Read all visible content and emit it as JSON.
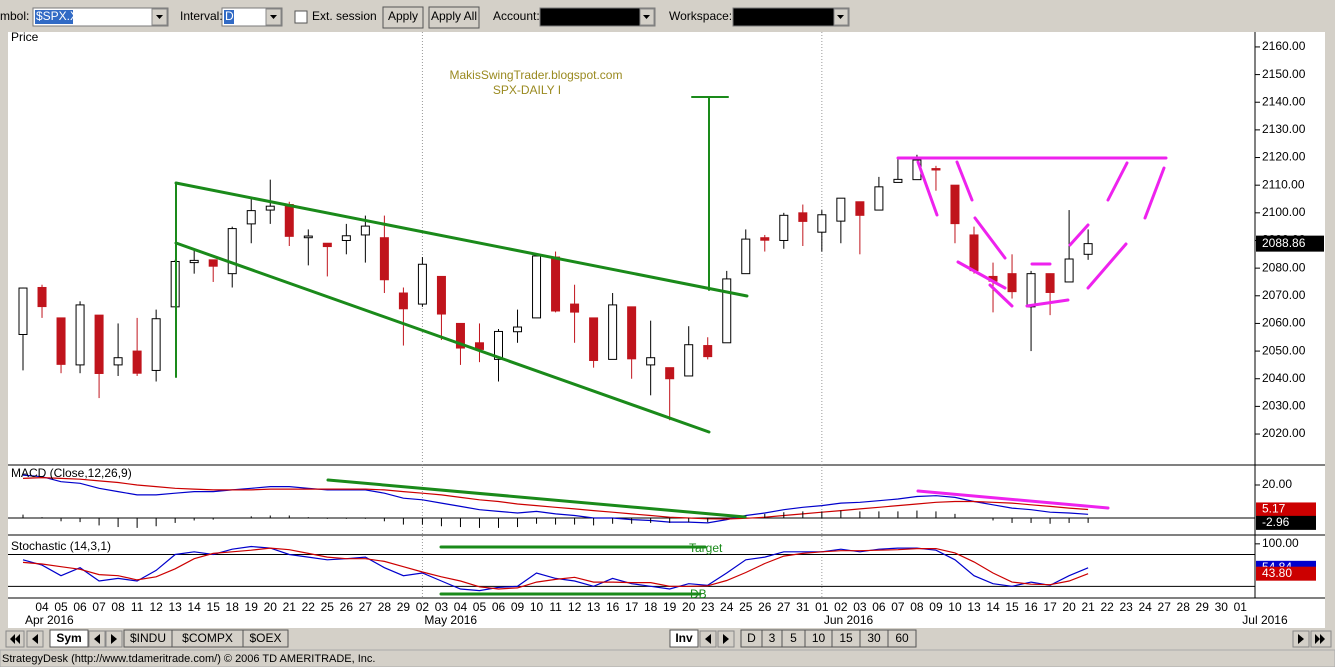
{
  "toolbar": {
    "symbol_label": "mbol:",
    "symbol": "$SPX.X",
    "interval_label": "Interval:",
    "interval": "D",
    "ext_session": "Ext. session",
    "apply": "Apply",
    "apply_all": "Apply All",
    "account_label": "Account:",
    "workspace_label": "Workspace:"
  },
  "chart_data": [
    {
      "type": "candlestick",
      "title": "Price",
      "annotations": [
        "MakisSwingTrader.blogspot.com",
        "SPX-DAILY  I"
      ],
      "categories": [
        null,
        "04",
        "05",
        "06",
        "07",
        "08",
        "11",
        "12",
        "13",
        "14",
        "15",
        "18",
        "19",
        "20",
        "21",
        "22",
        "25",
        "26",
        "27",
        "28",
        "29",
        "02",
        "03",
        "04",
        "05",
        "06",
        "09",
        "10",
        "11",
        "12",
        "13",
        "16",
        "17",
        "18",
        "19",
        "20",
        "23",
        "24",
        "25",
        "26",
        "27",
        "31",
        "01",
        "02",
        "03",
        "06",
        "07",
        "08",
        "09",
        "10",
        "13",
        "14",
        "15",
        "16",
        "17",
        "20",
        "21",
        "22",
        "23",
        "24",
        "27",
        "28",
        "29",
        "30",
        "01"
      ],
      "month_labels": [
        "Apr 2016",
        "May 2016",
        "Jun 2016",
        "Jul 2016"
      ],
      "open": [
        2056,
        2073,
        2062,
        2045,
        2063,
        2045,
        2050,
        2043,
        2066,
        2082,
        2083,
        2078,
        2096,
        2101,
        2103,
        2091,
        2089,
        2090,
        2092,
        2091,
        2071,
        2067,
        2077,
        2060,
        2053,
        2047,
        2057,
        2062,
        2084,
        2067,
        2062,
        2047,
        2066,
        2045,
        2044,
        2041,
        2052,
        2053,
        2078,
        2091,
        2090,
        2100,
        2093,
        2097,
        2104,
        2101,
        2111,
        2112,
        2116,
        2110,
        2092,
        2077,
        2078,
        2066,
        2078,
        2075,
        2085,
        null,
        null,
        null,
        null,
        null,
        null,
        null,
        null
      ],
      "high": [
        2073,
        2074,
        2062,
        2068,
        2063,
        2060,
        2062,
        2065,
        2083,
        2087,
        2083,
        2095,
        2105,
        2112,
        2104,
        2094,
        2089,
        2096,
        2099,
        2099,
        2073,
        2084,
        2077,
        2060,
        2060,
        2058,
        2065,
        2084,
        2086,
        2074,
        2062,
        2071,
        2066,
        2061,
        2044,
        2059,
        2055,
        2079,
        2094,
        2092,
        2100,
        2103,
        2101,
        2105,
        2104,
        2113,
        2120,
        2121,
        2117,
        2110,
        2095,
        2082,
        2085,
        2079,
        2078,
        2101,
        2094,
        null,
        null,
        null,
        null,
        null,
        null,
        null,
        null
      ],
      "low": [
        2043,
        2062,
        2042,
        2042,
        2033,
        2041,
        2041,
        2039,
        2066,
        2078,
        2075,
        2073,
        2089,
        2096,
        2088,
        2081,
        2077,
        2085,
        2082,
        2071,
        2052,
        2066,
        2054,
        2045,
        2046,
        2039,
        2053,
        2062,
        2064,
        2053,
        2044,
        2047,
        2040,
        2034,
        2025,
        2041,
        2047,
        2053,
        2078,
        2086,
        2087,
        2088,
        2086,
        2089,
        2085,
        2101,
        2111,
        2112,
        2108,
        2089,
        2078,
        2064,
        2069,
        2050,
        2063,
        2075,
        2083,
        null,
        null,
        null,
        null,
        null,
        null,
        null,
        null
      ],
      "close": [
        2072.8,
        2066.1,
        2045.2,
        2066.7,
        2041.9,
        2047.6,
        2042.0,
        2061.7,
        2082.4,
        2082.8,
        2080.7,
        2094.3,
        2100.8,
        2102.4,
        2091.5,
        2091.6,
        2087.8,
        2091.7,
        2095.2,
        2075.8,
        2065.3,
        2081.4,
        2063.4,
        2051.1,
        2050.6,
        2057.1,
        2058.7,
        2084.4,
        2064.5,
        2064.1,
        2046.6,
        2066.7,
        2047.2,
        2047.6,
        2040.0,
        2052.3,
        2048.0,
        2076.1,
        2090.5,
        2090.1,
        2099.1,
        2096.9,
        2099.3,
        2105.3,
        2099.1,
        2109.4,
        2112.1,
        2119.1,
        2115.5,
        2096.1,
        2079.1,
        2075.3,
        2071.5,
        2078.0,
        2071.2,
        2083.3,
        2088.86,
        null,
        null,
        null,
        null,
        null,
        null,
        null,
        null
      ],
      "colors": {
        "up": "#ffffff",
        "down": "#c0141c",
        "outline": "#000000"
      },
      "ylim": [
        2008.8,
        2165.4
      ],
      "yticks": [
        {
          "value": 2020,
          "label": "2020.00"
        },
        {
          "value": 2030,
          "label": "2030.00"
        },
        {
          "value": 2040,
          "label": "2040.00"
        },
        {
          "value": 2050,
          "label": "2050.00"
        },
        {
          "value": 2060,
          "label": "2060.00"
        },
        {
          "value": 2070,
          "label": "2070.00"
        },
        {
          "value": 2080,
          "label": "2080.00"
        },
        {
          "value": 2090,
          "label": "2090.00"
        },
        {
          "value": 2100,
          "label": "2100.00"
        },
        {
          "value": 2110,
          "label": "2110.00"
        },
        {
          "value": 2120,
          "label": "2120.00"
        },
        {
          "value": 2130,
          "label": "2130.00"
        },
        {
          "value": 2140,
          "label": "2140.00"
        },
        {
          "value": 2150,
          "label": "2150.00"
        },
        {
          "value": 2160,
          "label": "2160.00"
        }
      ]
    },
    {
      "type": "line",
      "title": "MACD (Close,12,26,9)",
      "series": [
        {
          "color": "#0000cc",
          "values": [
            26,
            25,
            22,
            21,
            18,
            16,
            14,
            14,
            15,
            16,
            16,
            17,
            18,
            19,
            19,
            18,
            17,
            17,
            17,
            15,
            12,
            11,
            9,
            7,
            5,
            4,
            3,
            4,
            2.5,
            1.5,
            0,
            0,
            -1,
            -1.5,
            -2.5,
            -2.5,
            -3,
            -1,
            1.5,
            3,
            5,
            6.5,
            7.5,
            9,
            9.5,
            10.5,
            11.5,
            13,
            13.5,
            12.5,
            10,
            8,
            6,
            5,
            3.5,
            3,
            2.21
          ]
        },
        {
          "color": "#cc0000",
          "show_last": true,
          "values": [
            24,
            24.5,
            24,
            23.5,
            22.5,
            21.5,
            20,
            19,
            18,
            17.5,
            17,
            17,
            17,
            17.5,
            17.5,
            17.5,
            17.5,
            17.5,
            17.5,
            17,
            16,
            15,
            14,
            12.5,
            11,
            10,
            8.5,
            7.5,
            6.5,
            5.5,
            4.5,
            3.5,
            2.5,
            1.5,
            0.5,
            0,
            -0.5,
            -0.6,
            -0.2,
            0.5,
            1.5,
            2.5,
            3.5,
            4.5,
            5.5,
            6.5,
            7.5,
            8.5,
            9.5,
            10,
            10,
            9.5,
            9,
            8,
            7,
            6,
            5.17
          ]
        },
        {
          "color": "#000000",
          "style": "histogram",
          "show_last": true,
          "values": [
            2,
            0.5,
            -2,
            -2.5,
            -4.5,
            -5.5,
            -6,
            -5,
            -3,
            -1.5,
            -1,
            0,
            1,
            1.5,
            1.5,
            0.5,
            -0.5,
            -0.5,
            -0.5,
            -2,
            -4,
            -4,
            -5,
            -5.5,
            -6,
            -6,
            -5.5,
            -3.5,
            -4,
            -4,
            -4.5,
            -3.5,
            -3.5,
            -3,
            -3,
            -2.5,
            -2.5,
            -0.4,
            1.7,
            2.5,
            3.5,
            4,
            4,
            4.5,
            4,
            4,
            4,
            4.5,
            4,
            2.5,
            0,
            -1.5,
            -3,
            -3,
            -3.5,
            -3,
            -2.96
          ]
        }
      ],
      "ylim": [
        -9.1,
        30.9
      ],
      "yticks": [
        {
          "value": 20,
          "label": "20.00"
        }
      ]
    },
    {
      "type": "line",
      "title": "Stochastic (14,3,1)",
      "annotations": [
        "Target",
        "DB"
      ],
      "series": [
        {
          "color": "#0000cc",
          "show_last": true,
          "values": [
            70,
            60,
            40,
            55,
            30,
            35,
            30,
            50,
            80,
            85,
            80,
            90,
            95,
            92,
            80,
            75,
            70,
            72,
            75,
            55,
            40,
            45,
            30,
            15,
            12,
            18,
            20,
            45,
            35,
            30,
            20,
            35,
            25,
            20,
            15,
            25,
            22,
            45,
            70,
            75,
            85,
            85,
            85,
            90,
            85,
            90,
            92,
            92,
            88,
            70,
            40,
            25,
            20,
            28,
            22,
            40,
            54.84
          ]
        },
        {
          "color": "#cc0000",
          "show_last": true,
          "values": [
            65,
            62,
            57,
            52,
            42,
            40,
            32,
            38,
            53,
            72,
            82,
            85,
            88,
            92,
            89,
            82,
            75,
            72,
            72,
            67,
            57,
            47,
            38,
            30,
            19,
            15,
            17,
            28,
            33,
            37,
            28,
            28,
            27,
            27,
            20,
            20,
            21,
            31,
            46,
            63,
            77,
            82,
            85,
            87,
            87,
            88,
            89,
            91,
            91,
            83,
            66,
            45,
            28,
            24,
            23,
            30,
            43.8
          ],
          "value_labels": [
            null,
            null,
            null,
            null,
            null,
            null,
            null,
            null,
            null,
            null,
            null,
            null,
            null,
            null,
            null,
            null,
            null,
            null,
            null,
            null,
            null,
            null,
            null,
            null,
            null,
            null,
            null,
            null,
            null,
            null,
            null,
            null,
            null,
            null,
            null,
            null,
            null,
            null,
            null,
            null,
            null,
            null,
            null,
            null,
            null,
            null,
            null,
            null,
            null,
            null,
            null,
            null,
            null,
            null,
            null,
            null,
            "43.80"
          ]
        }
      ],
      "levels": [
        80,
        20
      ],
      "ylim": [
        -2,
        111
      ],
      "yticks": [
        {
          "value": 100,
          "label": "100.00"
        }
      ]
    }
  ],
  "bottom_bar": {
    "tabs": [
      "Sym",
      "$INDU",
      "$COMPX",
      "$OEX"
    ],
    "inv": "Inv",
    "intervals": [
      "D",
      "3",
      "5",
      "10",
      "15",
      "30",
      "60"
    ]
  },
  "status_bar": "StrategyDesk (http://www.tdameritrade.com/) © 2006 TD AMERITRADE, Inc."
}
